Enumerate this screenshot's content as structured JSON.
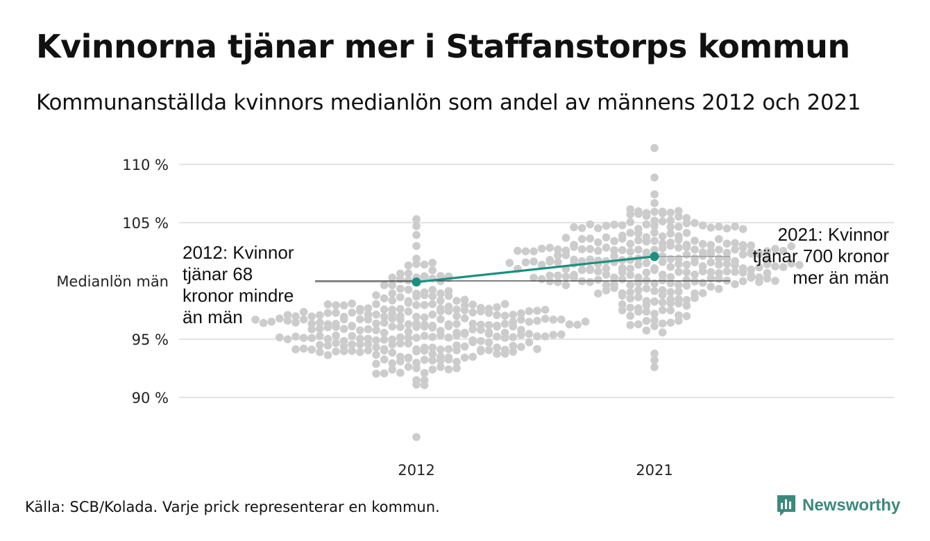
{
  "title": "Kvinnorna tjänar mer i Staffanstorps kommun",
  "subtitle": "Kommunanställda kvinnors medianlön som andel av männens 2012 och 2021",
  "source": "Källa: SCB/Kolada. Varje prick representerar en kommun.",
  "brand": "Newsworthy",
  "colors": {
    "dots": "#cccccc",
    "highlight": "#1a9080",
    "grid": "#e3e3e3",
    "reference": "#333333",
    "brand": "#3a8a7c"
  },
  "chart_data": {
    "type": "scatter",
    "subtype": "beeswarm",
    "categories": [
      "2012",
      "2021"
    ],
    "y_ticks": [
      {
        "value": 90,
        "label": "90 %"
      },
      {
        "value": 95,
        "label": "95 %"
      },
      {
        "value": 105,
        "label": "105 %"
      },
      {
        "value": 110,
        "label": "110 %"
      }
    ],
    "reference_line": {
      "value": 100,
      "label": "Medianlön män"
    },
    "ylim": [
      86,
      112
    ],
    "grid": true,
    "highlight": {
      "series_color": "#1a9080",
      "points": [
        {
          "x": "2012",
          "y": 99.9
        },
        {
          "x": "2021",
          "y": 102.1
        }
      ]
    },
    "annotations": [
      {
        "x": "2012",
        "lines": [
          "2012: Kvinnor",
          "tjänar 68",
          "kronor mindre",
          "än män"
        ]
      },
      {
        "x": "2021",
        "lines": [
          "2021: Kvinnor",
          "tjänar 700 kronor",
          "mer än män"
        ]
      }
    ],
    "distributions": [
      {
        "x": "2012",
        "count": 290,
        "median": 96.0,
        "sd": 2.4,
        "min": 86.6,
        "max": 105.3
      },
      {
        "x": "2021",
        "count": 290,
        "median": 101.8,
        "sd": 2.3,
        "min": 92.6,
        "max": 111.4
      }
    ]
  }
}
